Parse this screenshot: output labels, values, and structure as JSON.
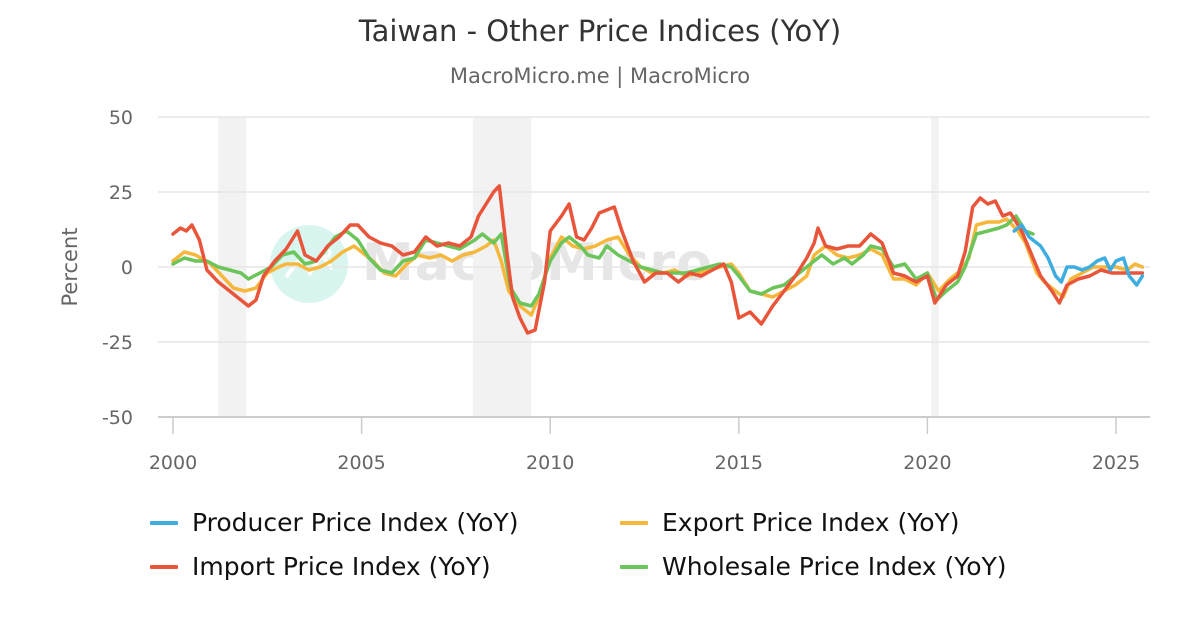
{
  "header": {
    "title": "Taiwan - Other Price Indices (YoY)",
    "subtitle": "MacroMicro.me | MacroMicro"
  },
  "watermark": {
    "text": "MacroMicro",
    "icon": "chart-logo-icon"
  },
  "legend": [
    {
      "label": "Producer Price Index (YoY)",
      "color": "#3eaee0"
    },
    {
      "label": "Export Price Index (YoY)",
      "color": "#f5b83d"
    },
    {
      "label": "Import Price Index (YoY)",
      "color": "#e9553a"
    },
    {
      "label": "Wholesale Price Index (YoY)",
      "color": "#6cc55a"
    }
  ],
  "chart_data": {
    "type": "line",
    "title": "Taiwan - Other Price Indices (YoY)",
    "subtitle": "MacroMicro.me | MacroMicro",
    "xlabel": "",
    "ylabel": "Percent",
    "xlim": [
      2000,
      2025.9
    ],
    "ylim": [
      -50,
      50
    ],
    "yticks": [
      50,
      25,
      0,
      -25,
      -50
    ],
    "xticks": [
      2000,
      2005,
      2010,
      2015,
      2020,
      2025
    ],
    "grid": true,
    "legend_position": "bottom",
    "recession_bands": [
      [
        2001.2,
        2001.95
      ],
      [
        2007.95,
        2009.5
      ],
      [
        2020.1,
        2020.3
      ]
    ],
    "series": [
      {
        "name": "Producer Price Index (YoY)",
        "color": "#3eaee0",
        "points": [
          [
            2022.3,
            12
          ],
          [
            2022.5,
            14
          ],
          [
            2022.7,
            10
          ],
          [
            2022.9,
            8
          ],
          [
            2023.0,
            7
          ],
          [
            2023.2,
            3
          ],
          [
            2023.4,
            -3
          ],
          [
            2023.55,
            -5
          ],
          [
            2023.7,
            0
          ],
          [
            2023.9,
            0
          ],
          [
            2024.1,
            -1
          ],
          [
            2024.3,
            0
          ],
          [
            2024.5,
            2
          ],
          [
            2024.7,
            3
          ],
          [
            2024.85,
            -1
          ],
          [
            2025.0,
            2
          ],
          [
            2025.2,
            3
          ],
          [
            2025.35,
            -3
          ],
          [
            2025.55,
            -6
          ],
          [
            2025.7,
            -3
          ]
        ]
      },
      {
        "name": "Export Price Index (YoY)",
        "color": "#f5b83d",
        "points": [
          [
            2000.0,
            2
          ],
          [
            2000.3,
            5
          ],
          [
            2000.6,
            4
          ],
          [
            2001.0,
            1
          ],
          [
            2001.3,
            -3
          ],
          [
            2001.6,
            -7
          ],
          [
            2001.9,
            -8
          ],
          [
            2002.2,
            -7
          ],
          [
            2002.5,
            -2
          ],
          [
            2002.8,
            0
          ],
          [
            2003.0,
            1
          ],
          [
            2003.3,
            1
          ],
          [
            2003.6,
            -1
          ],
          [
            2003.9,
            0
          ],
          [
            2004.2,
            2
          ],
          [
            2004.5,
            5
          ],
          [
            2004.8,
            7
          ],
          [
            2005.0,
            5
          ],
          [
            2005.3,
            2
          ],
          [
            2005.6,
            -2
          ],
          [
            2005.9,
            -3
          ],
          [
            2006.2,
            1
          ],
          [
            2006.5,
            4
          ],
          [
            2006.8,
            3
          ],
          [
            2007.1,
            4
          ],
          [
            2007.4,
            2
          ],
          [
            2007.7,
            4
          ],
          [
            2008.0,
            5
          ],
          [
            2008.3,
            7
          ],
          [
            2008.5,
            9
          ],
          [
            2008.7,
            2
          ],
          [
            2008.9,
            -8
          ],
          [
            2009.2,
            -13
          ],
          [
            2009.5,
            -16
          ],
          [
            2009.7,
            -10
          ],
          [
            2010.0,
            3
          ],
          [
            2010.3,
            10
          ],
          [
            2010.6,
            7
          ],
          [
            2010.9,
            6
          ],
          [
            2011.2,
            7
          ],
          [
            2011.5,
            9
          ],
          [
            2011.8,
            10
          ],
          [
            2012.1,
            4
          ],
          [
            2012.4,
            0
          ],
          [
            2012.7,
            -2
          ],
          [
            2013.0,
            -2
          ],
          [
            2013.3,
            -1
          ],
          [
            2013.6,
            -3
          ],
          [
            2013.9,
            -2
          ],
          [
            2014.2,
            -1
          ],
          [
            2014.5,
            0
          ],
          [
            2014.8,
            1
          ],
          [
            2015.0,
            -2
          ],
          [
            2015.3,
            -8
          ],
          [
            2015.6,
            -9
          ],
          [
            2015.9,
            -10
          ],
          [
            2016.2,
            -8
          ],
          [
            2016.5,
            -6
          ],
          [
            2016.8,
            -3
          ],
          [
            2017.0,
            4
          ],
          [
            2017.3,
            7
          ],
          [
            2017.6,
            4
          ],
          [
            2017.9,
            3
          ],
          [
            2018.2,
            4
          ],
          [
            2018.5,
            6
          ],
          [
            2018.8,
            4
          ],
          [
            2019.1,
            -4
          ],
          [
            2019.4,
            -4
          ],
          [
            2019.7,
            -6
          ],
          [
            2020.0,
            -2
          ],
          [
            2020.3,
            -8
          ],
          [
            2020.6,
            -4
          ],
          [
            2020.9,
            -1
          ],
          [
            2021.1,
            3
          ],
          [
            2021.3,
            14
          ],
          [
            2021.6,
            15
          ],
          [
            2021.9,
            15
          ],
          [
            2022.1,
            16
          ],
          [
            2022.4,
            12
          ],
          [
            2022.6,
            8
          ],
          [
            2022.9,
            -2
          ],
          [
            2023.1,
            -5
          ],
          [
            2023.4,
            -8
          ],
          [
            2023.6,
            -10
          ],
          [
            2023.8,
            -4
          ],
          [
            2024.1,
            -2
          ],
          [
            2024.4,
            0
          ],
          [
            2024.7,
            0
          ],
          [
            2025.0,
            0
          ],
          [
            2025.3,
            -1
          ],
          [
            2025.5,
            1
          ],
          [
            2025.7,
            0
          ]
        ]
      },
      {
        "name": "Import Price Index (YoY)",
        "color": "#e9553a",
        "points": [
          [
            2000.0,
            11
          ],
          [
            2000.2,
            13
          ],
          [
            2000.35,
            12
          ],
          [
            2000.5,
            14
          ],
          [
            2000.7,
            9
          ],
          [
            2000.9,
            -1
          ],
          [
            2001.2,
            -5
          ],
          [
            2001.5,
            -8
          ],
          [
            2001.8,
            -11
          ],
          [
            2002.0,
            -13
          ],
          [
            2002.2,
            -11
          ],
          [
            2002.4,
            -3
          ],
          [
            2002.7,
            2
          ],
          [
            2003.0,
            6
          ],
          [
            2003.3,
            12
          ],
          [
            2003.5,
            4
          ],
          [
            2003.8,
            2
          ],
          [
            2004.1,
            7
          ],
          [
            2004.4,
            10
          ],
          [
            2004.7,
            14
          ],
          [
            2004.9,
            14
          ],
          [
            2005.2,
            10
          ],
          [
            2005.5,
            8
          ],
          [
            2005.8,
            7
          ],
          [
            2006.1,
            4
          ],
          [
            2006.4,
            5
          ],
          [
            2006.7,
            10
          ],
          [
            2007.0,
            7
          ],
          [
            2007.3,
            8
          ],
          [
            2007.6,
            7
          ],
          [
            2007.9,
            10
          ],
          [
            2008.1,
            17
          ],
          [
            2008.3,
            21
          ],
          [
            2008.5,
            25
          ],
          [
            2008.65,
            27
          ],
          [
            2008.85,
            5
          ],
          [
            2009.0,
            -10
          ],
          [
            2009.2,
            -17
          ],
          [
            2009.4,
            -22
          ],
          [
            2009.6,
            -21
          ],
          [
            2009.85,
            -5
          ],
          [
            2010.0,
            12
          ],
          [
            2010.3,
            17
          ],
          [
            2010.5,
            21
          ],
          [
            2010.7,
            10
          ],
          [
            2010.9,
            9
          ],
          [
            2011.1,
            13
          ],
          [
            2011.3,
            18
          ],
          [
            2011.5,
            19
          ],
          [
            2011.7,
            20
          ],
          [
            2011.9,
            12
          ],
          [
            2012.2,
            2
          ],
          [
            2012.5,
            -5
          ],
          [
            2012.8,
            -2
          ],
          [
            2013.1,
            -2
          ],
          [
            2013.4,
            -5
          ],
          [
            2013.7,
            -2
          ],
          [
            2014.0,
            -3
          ],
          [
            2014.3,
            -1
          ],
          [
            2014.6,
            1
          ],
          [
            2014.8,
            -5
          ],
          [
            2015.0,
            -17
          ],
          [
            2015.3,
            -15
          ],
          [
            2015.6,
            -19
          ],
          [
            2015.9,
            -13
          ],
          [
            2016.2,
            -8
          ],
          [
            2016.5,
            -3
          ],
          [
            2016.8,
            3
          ],
          [
            2017.0,
            8
          ],
          [
            2017.1,
            13
          ],
          [
            2017.3,
            7
          ],
          [
            2017.6,
            6
          ],
          [
            2017.9,
            7
          ],
          [
            2018.2,
            7
          ],
          [
            2018.5,
            11
          ],
          [
            2018.8,
            8
          ],
          [
            2019.1,
            -2
          ],
          [
            2019.4,
            -3
          ],
          [
            2019.7,
            -5
          ],
          [
            2020.0,
            -3
          ],
          [
            2020.2,
            -12
          ],
          [
            2020.5,
            -6
          ],
          [
            2020.8,
            -3
          ],
          [
            2021.0,
            5
          ],
          [
            2021.2,
            20
          ],
          [
            2021.4,
            23
          ],
          [
            2021.6,
            21
          ],
          [
            2021.8,
            22
          ],
          [
            2022.0,
            17
          ],
          [
            2022.2,
            18
          ],
          [
            2022.5,
            12
          ],
          [
            2022.8,
            3
          ],
          [
            2023.0,
            -3
          ],
          [
            2023.3,
            -8
          ],
          [
            2023.5,
            -12
          ],
          [
            2023.7,
            -6
          ],
          [
            2024.0,
            -4
          ],
          [
            2024.3,
            -3
          ],
          [
            2024.6,
            -1
          ],
          [
            2024.9,
            -2
          ],
          [
            2025.2,
            -2
          ],
          [
            2025.5,
            -2
          ],
          [
            2025.7,
            -2
          ]
        ]
      },
      {
        "name": "Wholesale Price Index (YoY)",
        "color": "#6cc55a",
        "points": [
          [
            2000.0,
            1
          ],
          [
            2000.3,
            3
          ],
          [
            2000.6,
            2
          ],
          [
            2000.9,
            2
          ],
          [
            2001.2,
            0
          ],
          [
            2001.5,
            -1
          ],
          [
            2001.8,
            -2
          ],
          [
            2002.0,
            -4
          ],
          [
            2002.3,
            -2
          ],
          [
            2002.6,
            0
          ],
          [
            2002.9,
            4
          ],
          [
            2003.2,
            5
          ],
          [
            2003.5,
            1
          ],
          [
            2003.8,
            2
          ],
          [
            2004.0,
            5
          ],
          [
            2004.3,
            10
          ],
          [
            2004.6,
            12
          ],
          [
            2004.9,
            9
          ],
          [
            2005.2,
            3
          ],
          [
            2005.5,
            -1
          ],
          [
            2005.8,
            -2
          ],
          [
            2006.1,
            2
          ],
          [
            2006.4,
            3
          ],
          [
            2006.7,
            9
          ],
          [
            2007.0,
            8
          ],
          [
            2007.3,
            7
          ],
          [
            2007.6,
            6
          ],
          [
            2008.0,
            9
          ],
          [
            2008.2,
            11
          ],
          [
            2008.5,
            8
          ],
          [
            2008.7,
            11
          ],
          [
            2008.95,
            -7
          ],
          [
            2009.2,
            -12
          ],
          [
            2009.5,
            -13
          ],
          [
            2009.7,
            -9
          ],
          [
            2010.0,
            2
          ],
          [
            2010.3,
            8
          ],
          [
            2010.5,
            10
          ],
          [
            2010.8,
            7
          ],
          [
            2011.0,
            4
          ],
          [
            2011.3,
            3
          ],
          [
            2011.5,
            7
          ],
          [
            2011.8,
            4
          ],
          [
            2012.1,
            2
          ],
          [
            2012.4,
            0
          ],
          [
            2012.7,
            -1
          ],
          [
            2013.0,
            -2
          ],
          [
            2013.3,
            -2
          ],
          [
            2013.6,
            -2
          ],
          [
            2013.9,
            -1
          ],
          [
            2014.2,
            0
          ],
          [
            2014.5,
            1
          ],
          [
            2014.8,
            0
          ],
          [
            2015.0,
            -3
          ],
          [
            2015.3,
            -8
          ],
          [
            2015.6,
            -9
          ],
          [
            2015.9,
            -7
          ],
          [
            2016.2,
            -6
          ],
          [
            2016.5,
            -3
          ],
          [
            2016.8,
            0
          ],
          [
            2017.0,
            2
          ],
          [
            2017.2,
            4
          ],
          [
            2017.5,
            1
          ],
          [
            2017.8,
            3
          ],
          [
            2018.0,
            1
          ],
          [
            2018.3,
            4
          ],
          [
            2018.5,
            7
          ],
          [
            2018.8,
            6
          ],
          [
            2019.1,
            0
          ],
          [
            2019.4,
            1
          ],
          [
            2019.7,
            -4
          ],
          [
            2020.0,
            -2
          ],
          [
            2020.25,
            -11
          ],
          [
            2020.5,
            -8
          ],
          [
            2020.8,
            -5
          ],
          [
            2021.0,
            0
          ],
          [
            2021.3,
            11
          ],
          [
            2021.6,
            12
          ],
          [
            2021.9,
            13
          ],
          [
            2022.1,
            14
          ],
          [
            2022.35,
            17
          ],
          [
            2022.6,
            12
          ],
          [
            2022.8,
            11
          ]
        ]
      }
    ]
  }
}
